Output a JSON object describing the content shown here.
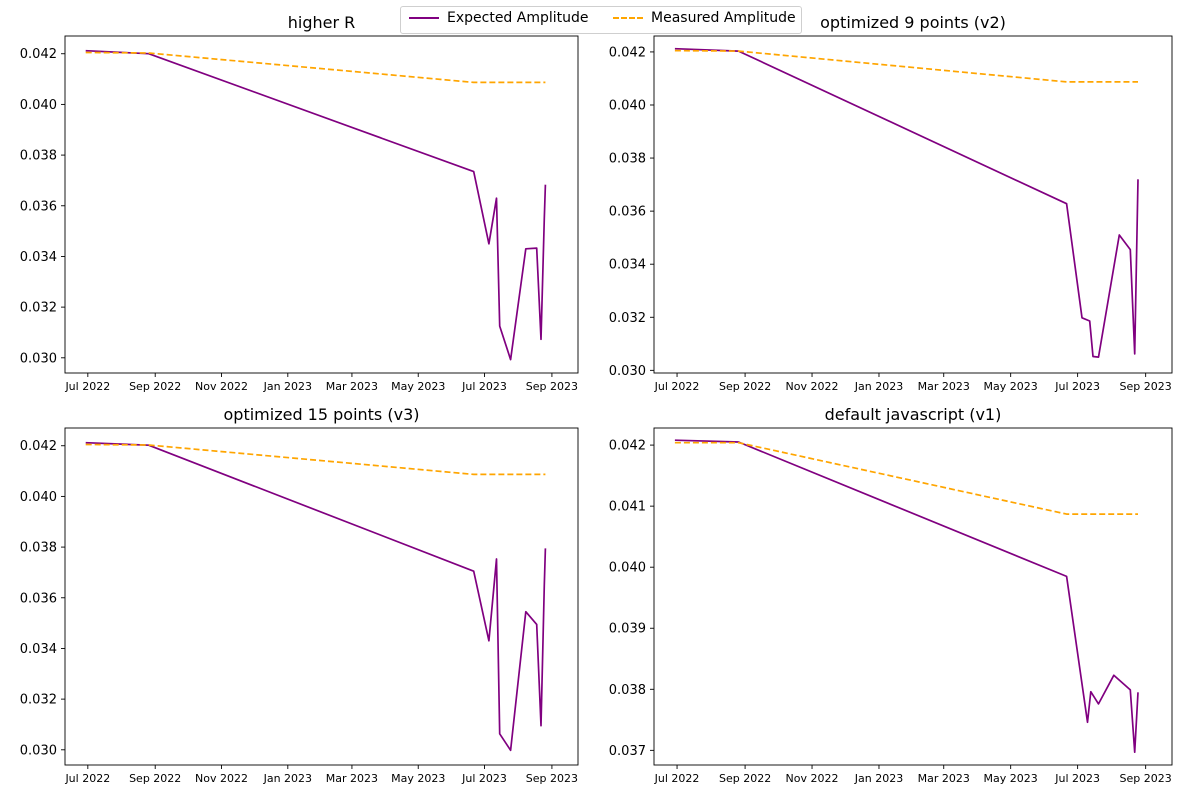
{
  "legend": {
    "entries": [
      {
        "label": "Expected Amplitude",
        "color": "#800080",
        "style": "solid"
      },
      {
        "label": "Measured Amplitude",
        "color": "#ffa500",
        "style": "dashed"
      }
    ]
  },
  "chart_data": [
    {
      "type": "line",
      "title": "higher R",
      "xlabel": "",
      "ylabel": "",
      "xlim": [
        "2022-06-10",
        "2023-09-25"
      ],
      "ylim": [
        0.0294,
        0.0427
      ],
      "xticks": [
        "2022-07-01",
        "2022-09-01",
        "2022-11-01",
        "2023-01-01",
        "2023-03-01",
        "2023-05-01",
        "2023-07-01",
        "2023-09-01"
      ],
      "xtick_labels": [
        "Jul 2022",
        "Sep 2022",
        "Nov 2022",
        "Jan 2023",
        "Mar 2023",
        "May 2023",
        "Jul 2023",
        "Sep 2023"
      ],
      "yticks": [
        0.03,
        0.032,
        0.034,
        0.036,
        0.038,
        0.04,
        0.042
      ],
      "ytick_labels": [
        "0.030",
        "0.032",
        "0.034",
        "0.036",
        "0.038",
        "0.040",
        "0.042"
      ],
      "grid": false,
      "series": [
        {
          "name": "Expected Amplitude",
          "color": "#800080",
          "style": "solid",
          "x": [
            "2022-06-29",
            "2022-08-26",
            "2023-06-21",
            "2023-07-05",
            "2023-07-12",
            "2023-07-15",
            "2023-07-25",
            "2023-08-08",
            "2023-08-18",
            "2023-08-22",
            "2023-08-25",
            "2023-08-26"
          ],
          "y": [
            0.04212,
            0.042,
            0.03735,
            0.0345,
            0.0363,
            0.03125,
            0.02993,
            0.0343,
            0.03433,
            0.03073,
            0.0355,
            0.03683
          ]
        },
        {
          "name": "Measured Amplitude",
          "color": "#ffa500",
          "style": "dashed",
          "x": [
            "2022-06-29",
            "2022-08-26",
            "2023-06-21",
            "2023-08-26"
          ],
          "y": [
            0.04205,
            0.04203,
            0.04087,
            0.04087
          ]
        }
      ]
    },
    {
      "type": "line",
      "title": "optimized 9 points (v2)",
      "xlabel": "",
      "ylabel": "",
      "xlim": [
        "2022-06-10",
        "2023-09-25"
      ],
      "ylim": [
        0.0299,
        0.0426
      ],
      "xticks": [
        "2022-07-01",
        "2022-09-01",
        "2022-11-01",
        "2023-01-01",
        "2023-03-01",
        "2023-05-01",
        "2023-07-01",
        "2023-09-01"
      ],
      "xtick_labels": [
        "Jul 2022",
        "Sep 2022",
        "Nov 2022",
        "Jan 2023",
        "Mar 2023",
        "May 2023",
        "Jul 2023",
        "Sep 2023"
      ],
      "yticks": [
        0.03,
        0.032,
        0.034,
        0.036,
        0.038,
        0.04,
        0.042
      ],
      "ytick_labels": [
        "0.030",
        "0.032",
        "0.034",
        "0.036",
        "0.038",
        "0.040",
        "0.042"
      ],
      "grid": false,
      "series": [
        {
          "name": "Expected Amplitude",
          "color": "#800080",
          "style": "solid",
          "x": [
            "2022-06-29",
            "2022-08-26",
            "2023-06-21",
            "2023-07-05",
            "2023-07-12",
            "2023-07-15",
            "2023-07-20",
            "2023-08-08",
            "2023-08-18",
            "2023-08-22",
            "2023-08-25"
          ],
          "y": [
            0.04212,
            0.04203,
            0.03628,
            0.03198,
            0.03186,
            0.03052,
            0.0305,
            0.0351,
            0.03455,
            0.03062,
            0.0372
          ]
        },
        {
          "name": "Measured Amplitude",
          "color": "#ffa500",
          "style": "dashed",
          "x": [
            "2022-06-29",
            "2022-08-26",
            "2023-06-21",
            "2023-08-25"
          ],
          "y": [
            0.04205,
            0.04203,
            0.04087,
            0.04087
          ]
        }
      ]
    },
    {
      "type": "line",
      "title": "optimized 15 points (v3)",
      "xlabel": "",
      "ylabel": "",
      "xlim": [
        "2022-06-10",
        "2023-09-25"
      ],
      "ylim": [
        0.0294,
        0.0427
      ],
      "xticks": [
        "2022-07-01",
        "2022-09-01",
        "2022-11-01",
        "2023-01-01",
        "2023-03-01",
        "2023-05-01",
        "2023-07-01",
        "2023-09-01"
      ],
      "xtick_labels": [
        "Jul 2022",
        "Sep 2022",
        "Nov 2022",
        "Jan 2023",
        "Mar 2023",
        "May 2023",
        "Jul 2023",
        "Sep 2023"
      ],
      "yticks": [
        0.03,
        0.032,
        0.034,
        0.036,
        0.038,
        0.04,
        0.042
      ],
      "ytick_labels": [
        "0.030",
        "0.032",
        "0.034",
        "0.036",
        "0.038",
        "0.040",
        "0.042"
      ],
      "grid": false,
      "series": [
        {
          "name": "Expected Amplitude",
          "color": "#800080",
          "style": "solid",
          "x": [
            "2022-06-29",
            "2022-08-26",
            "2023-06-21",
            "2023-07-05",
            "2023-07-12",
            "2023-07-15",
            "2023-07-25",
            "2023-08-08",
            "2023-08-18",
            "2023-08-22",
            "2023-08-25",
            "2023-08-26"
          ],
          "y": [
            0.04212,
            0.04202,
            0.03705,
            0.0343,
            0.03753,
            0.03063,
            0.02998,
            0.03545,
            0.03495,
            0.03095,
            0.0365,
            0.03795
          ]
        },
        {
          "name": "Measured Amplitude",
          "color": "#ffa500",
          "style": "dashed",
          "x": [
            "2022-06-29",
            "2022-08-26",
            "2023-06-21",
            "2023-08-26"
          ],
          "y": [
            0.04205,
            0.04203,
            0.04087,
            0.04087
          ]
        }
      ]
    },
    {
      "type": "line",
      "title": "default javascript (v1)",
      "xlabel": "",
      "ylabel": "",
      "xlim": [
        "2022-06-10",
        "2023-09-25"
      ],
      "ylim": [
        0.03676,
        0.04228
      ],
      "xticks": [
        "2022-07-01",
        "2022-09-01",
        "2022-11-01",
        "2023-01-01",
        "2023-03-01",
        "2023-05-01",
        "2023-07-01",
        "2023-09-01"
      ],
      "xtick_labels": [
        "Jul 2022",
        "Sep 2022",
        "Nov 2022",
        "Jan 2023",
        "Mar 2023",
        "May 2023",
        "Jul 2023",
        "Sep 2023"
      ],
      "yticks": [
        0.037,
        0.038,
        0.039,
        0.04,
        0.041,
        0.042
      ],
      "ytick_labels": [
        "0.037",
        "0.038",
        "0.039",
        "0.040",
        "0.041",
        "0.042"
      ],
      "grid": false,
      "series": [
        {
          "name": "Expected Amplitude",
          "color": "#800080",
          "style": "solid",
          "x": [
            "2022-06-29",
            "2022-08-26",
            "2023-06-21",
            "2023-07-10",
            "2023-07-13",
            "2023-07-20",
            "2023-08-03",
            "2023-08-18",
            "2023-08-22",
            "2023-08-25"
          ],
          "y": [
            0.04208,
            0.04205,
            0.03985,
            0.03746,
            0.03796,
            0.03776,
            0.03823,
            0.03799,
            0.03697,
            0.03795
          ]
        },
        {
          "name": "Measured Amplitude",
          "color": "#ffa500",
          "style": "dashed",
          "x": [
            "2022-06-29",
            "2022-08-26",
            "2023-06-21",
            "2023-08-25"
          ],
          "y": [
            0.04204,
            0.04204,
            0.04087,
            0.04087
          ]
        }
      ]
    }
  ]
}
